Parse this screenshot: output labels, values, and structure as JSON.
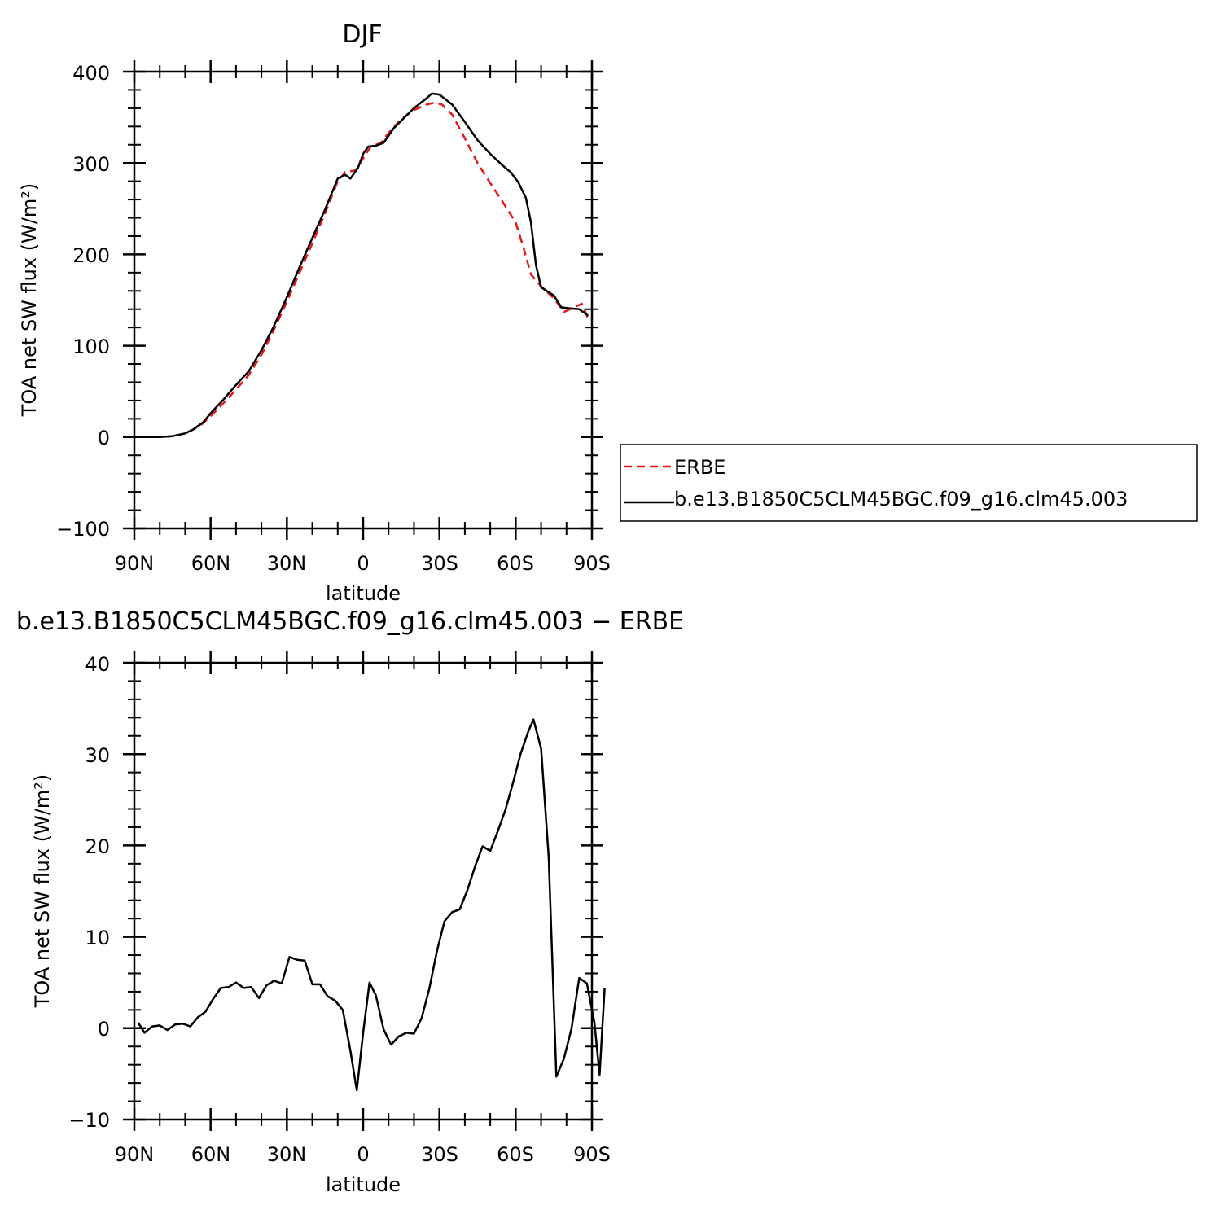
{
  "chart_data": [
    {
      "type": "line",
      "title": "DJF",
      "xlabel": "latitude",
      "ylabel": "TOA net SW flux (W/m²)",
      "xlim": [
        -90,
        90
      ],
      "ylim": [
        -100,
        400
      ],
      "x_tick_values": [
        -90,
        -60,
        -30,
        0,
        30,
        60,
        90
      ],
      "x_tick_labels": [
        "90N",
        "60N",
        "30N",
        "0",
        "30S",
        "60S",
        "90S"
      ],
      "y_tick_values": [
        -100,
        0,
        100,
        200,
        300,
        400
      ],
      "y_tick_labels": [
        "−100",
        "0",
        "100",
        "200",
        "300",
        "400"
      ],
      "legend": "right",
      "series": [
        {
          "name": "ERBE",
          "color": "#e8141b",
          "style": "dashed",
          "points": [
            [
              -88.5,
              0
            ],
            [
              -85,
              0
            ],
            [
              -80,
              0
            ],
            [
              -75,
              1
            ],
            [
              -70,
              4
            ],
            [
              -67,
              8
            ],
            [
              -63,
              15
            ],
            [
              -60,
              23
            ],
            [
              -55,
              37
            ],
            [
              -50,
              52
            ],
            [
              -45,
              68
            ],
            [
              -40,
              90
            ],
            [
              -35,
              118
            ],
            [
              -30,
              148
            ],
            [
              -25,
              180
            ],
            [
              -20,
              212
            ],
            [
              -15,
              245
            ],
            [
              -10,
              280
            ],
            [
              -7,
              290
            ],
            [
              -3,
              292
            ],
            [
              0,
              305
            ],
            [
              3,
              318
            ],
            [
              7,
              322
            ],
            [
              10,
              333
            ],
            [
              15,
              348
            ],
            [
              20,
              358
            ],
            [
              25,
              364
            ],
            [
              28,
              366
            ],
            [
              31,
              364
            ],
            [
              35,
              353
            ],
            [
              40,
              327
            ],
            [
              45,
              300
            ],
            [
              50,
              278
            ],
            [
              55,
              257
            ],
            [
              60,
              235
            ],
            [
              63,
              208
            ],
            [
              66,
              178
            ],
            [
              70,
              165
            ],
            [
              75,
              152
            ],
            [
              79,
              137
            ],
            [
              83,
              142
            ],
            [
              86,
              146
            ],
            [
              88.5,
              130
            ]
          ]
        },
        {
          "name": "b.e13.B1850C5CLM45BGC.f09_g16.clm45.003",
          "color": "#000000",
          "style": "solid",
          "points": [
            [
              -88.5,
              0
            ],
            [
              -85,
              0
            ],
            [
              -80,
              0
            ],
            [
              -75,
              1
            ],
            [
              -70,
              4
            ],
            [
              -67,
              8
            ],
            [
              -63,
              16
            ],
            [
              -60,
              26
            ],
            [
              -55,
              41
            ],
            [
              -50,
              57
            ],
            [
              -45,
              72
            ],
            [
              -40,
              95
            ],
            [
              -35,
              122
            ],
            [
              -30,
              153
            ],
            [
              -25,
              186
            ],
            [
              -20,
              218
            ],
            [
              -15,
              249
            ],
            [
              -10,
              283
            ],
            [
              -7,
              287
            ],
            [
              -5,
              283
            ],
            [
              -2,
              295
            ],
            [
              0,
              310
            ],
            [
              2,
              318
            ],
            [
              5,
              319
            ],
            [
              8,
              322
            ],
            [
              12,
              338
            ],
            [
              17,
              352
            ],
            [
              20,
              360
            ],
            [
              25,
              371
            ],
            [
              27,
              376
            ],
            [
              30,
              375
            ],
            [
              35,
              364
            ],
            [
              40,
              345
            ],
            [
              45,
              325
            ],
            [
              50,
              310
            ],
            [
              55,
              297
            ],
            [
              58,
              290
            ],
            [
              61,
              279
            ],
            [
              64,
              262
            ],
            [
              66,
              235
            ],
            [
              68,
              188
            ],
            [
              70,
              164
            ],
            [
              75,
              155
            ],
            [
              78,
              142
            ],
            [
              81,
              141
            ],
            [
              85,
              140
            ],
            [
              88.5,
              133
            ]
          ]
        }
      ]
    },
    {
      "type": "line",
      "title": "b.e13.B1850C5CLM45BGC.f09_g16.clm45.003 − ERBE",
      "xlabel": "latitude",
      "ylabel": "TOA net SW flux (W/m²)",
      "xlim": [
        -90,
        90
      ],
      "ylim": [
        -10,
        40
      ],
      "x_tick_values": [
        -90,
        -60,
        -30,
        0,
        30,
        60,
        90
      ],
      "x_tick_labels": [
        "90N",
        "60N",
        "30N",
        "0",
        "30S",
        "60S",
        "90S"
      ],
      "y_tick_values": [
        -10,
        0,
        10,
        20,
        30,
        40
      ],
      "y_tick_labels": [
        "−10",
        "0",
        "10",
        "20",
        "30",
        "40"
      ],
      "series": [
        {
          "color": "#000000",
          "style": "solid",
          "points": [
            [
              -88.5,
              0.6
            ],
            [
              -86,
              -0.5
            ],
            [
              -83,
              0.2
            ],
            [
              -80,
              0.3
            ],
            [
              -77,
              -0.2
            ],
            [
              -74,
              0.4
            ],
            [
              -71,
              0.5
            ],
            [
              -68,
              0.2
            ],
            [
              -65,
              1.2
            ],
            [
              -62,
              1.8
            ],
            [
              -59,
              3.2
            ],
            [
              -56,
              4.4
            ],
            [
              -53,
              4.5
            ],
            [
              -50,
              5.0
            ],
            [
              -47,
              4.4
            ],
            [
              -44,
              4.5
            ],
            [
              -41,
              3.3
            ],
            [
              -38,
              4.7
            ],
            [
              -35,
              5.2
            ],
            [
              -32,
              4.9
            ],
            [
              -29,
              7.8
            ],
            [
              -26,
              7.5
            ],
            [
              -23,
              7.4
            ],
            [
              -20,
              4.8
            ],
            [
              -17,
              4.8
            ],
            [
              -14,
              3.5
            ],
            [
              -11,
              3.0
            ],
            [
              -8,
              2.0
            ],
            [
              -5,
              -2.5
            ],
            [
              -2.5,
              -6.8
            ],
            [
              0,
              -0.5
            ],
            [
              2.5,
              5.0
            ],
            [
              5,
              3.6
            ],
            [
              8,
              -0.1
            ],
            [
              11,
              -1.8
            ],
            [
              14,
              -0.9
            ],
            [
              17,
              -0.5
            ],
            [
              20,
              -0.6
            ],
            [
              23,
              1.1
            ],
            [
              26,
              4.3
            ],
            [
              29,
              8.4
            ],
            [
              32,
              11.7
            ],
            [
              35,
              12.7
            ],
            [
              38,
              13.0
            ],
            [
              41,
              15.1
            ],
            [
              44,
              17.7
            ],
            [
              47,
              19.9
            ],
            [
              50,
              19.4
            ],
            [
              53,
              21.6
            ],
            [
              56,
              23.9
            ],
            [
              59,
              26.9
            ],
            [
              62,
              30.1
            ],
            [
              65,
              32.5
            ],
            [
              67,
              33.8
            ],
            [
              70,
              30.6
            ],
            [
              73,
              18.7
            ],
            [
              76,
              -5.3
            ],
            [
              79,
              -3.3
            ],
            [
              82,
              0.0
            ],
            [
              85,
              5.5
            ],
            [
              88,
              4.9
            ],
            [
              91,
              0.6
            ],
            [
              93,
              -5.1
            ],
            [
              95,
              4.4
            ]
          ]
        }
      ]
    }
  ]
}
